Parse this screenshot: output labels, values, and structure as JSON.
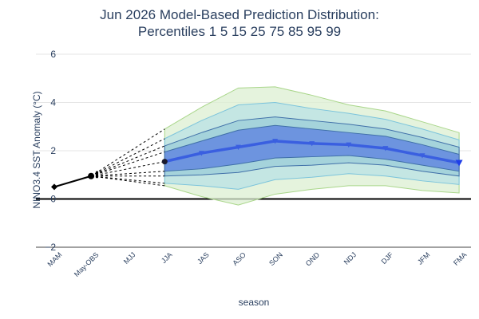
{
  "chart_data": {
    "type": "area",
    "title_line1": "Jun 2026 Model-Based Prediction Distribution:",
    "title_line2": "Percentiles 1 5 15 25 75 85 95 99",
    "xlabel": "season",
    "ylabel": "NINO3.4 SST Anomaly (°C)",
    "categories": [
      "MAM",
      "May-OBS",
      "MJJ",
      "JJA",
      "JAS",
      "ASO",
      "SON",
      "OND",
      "NDJ",
      "DJF",
      "JFM",
      "FMA"
    ],
    "ylim": [
      -2,
      6
    ],
    "yticks": [
      "−2",
      "0",
      "2",
      "4",
      "6"
    ],
    "ytick_values": [
      -2,
      0,
      2,
      4,
      6
    ],
    "grid": true,
    "zero_line": true,
    "observed": {
      "categories": [
        "MAM",
        "May-OBS"
      ],
      "values": [
        0.5,
        0.95
      ]
    },
    "forecast_categories": [
      "JJA",
      "JAS",
      "ASO",
      "SON",
      "OND",
      "NDJ",
      "DJF",
      "JFM",
      "FMA"
    ],
    "percentiles": {
      "p1": [
        0.55,
        0.1,
        -0.25,
        0.2,
        0.4,
        0.55,
        0.55,
        0.35,
        0.25
      ],
      "p5": [
        0.65,
        0.55,
        0.4,
        0.8,
        0.9,
        1.05,
        0.95,
        0.75,
        0.6
      ],
      "p15": [
        0.95,
        1.0,
        1.1,
        1.35,
        1.4,
        1.5,
        1.4,
        1.15,
        0.95
      ],
      "p25": [
        1.15,
        1.25,
        1.45,
        1.7,
        1.75,
        1.8,
        1.65,
        1.4,
        1.15
      ],
      "p75": [
        1.95,
        2.4,
        2.85,
        3.05,
        2.9,
        2.75,
        2.6,
        2.25,
        1.85
      ],
      "p85": [
        2.2,
        2.75,
        3.25,
        3.4,
        3.25,
        3.1,
        2.9,
        2.55,
        2.15
      ],
      "p95": [
        2.5,
        3.25,
        3.9,
        4.0,
        3.75,
        3.55,
        3.3,
        2.9,
        2.45
      ],
      "p99": [
        2.9,
        3.8,
        4.6,
        4.65,
        4.3,
        3.9,
        3.65,
        3.2,
        2.75
      ]
    },
    "median": {
      "categories": [
        "JJA",
        "JAS",
        "ASO",
        "SON",
        "OND",
        "NDJ",
        "DJF",
        "JFM",
        "FMA"
      ],
      "values": [
        1.55,
        1.9,
        2.15,
        2.4,
        2.3,
        2.25,
        2.1,
        1.8,
        1.5
      ]
    },
    "colors": {
      "band_99": "#dcefd2",
      "band_95": "#b2dfe6",
      "band_85": "#8cc2d6",
      "band_75": "#5b7fe0",
      "band_outline_99": "#a9d68a",
      "band_outline_95": "#7cc4dc",
      "band_outline_85": "#3f6fa8",
      "median_line": "#3a5fe0",
      "observed": "#000000",
      "grid": "#e5e5e5",
      "zero_line": "#000000",
      "text": "#2a3f5f"
    }
  }
}
